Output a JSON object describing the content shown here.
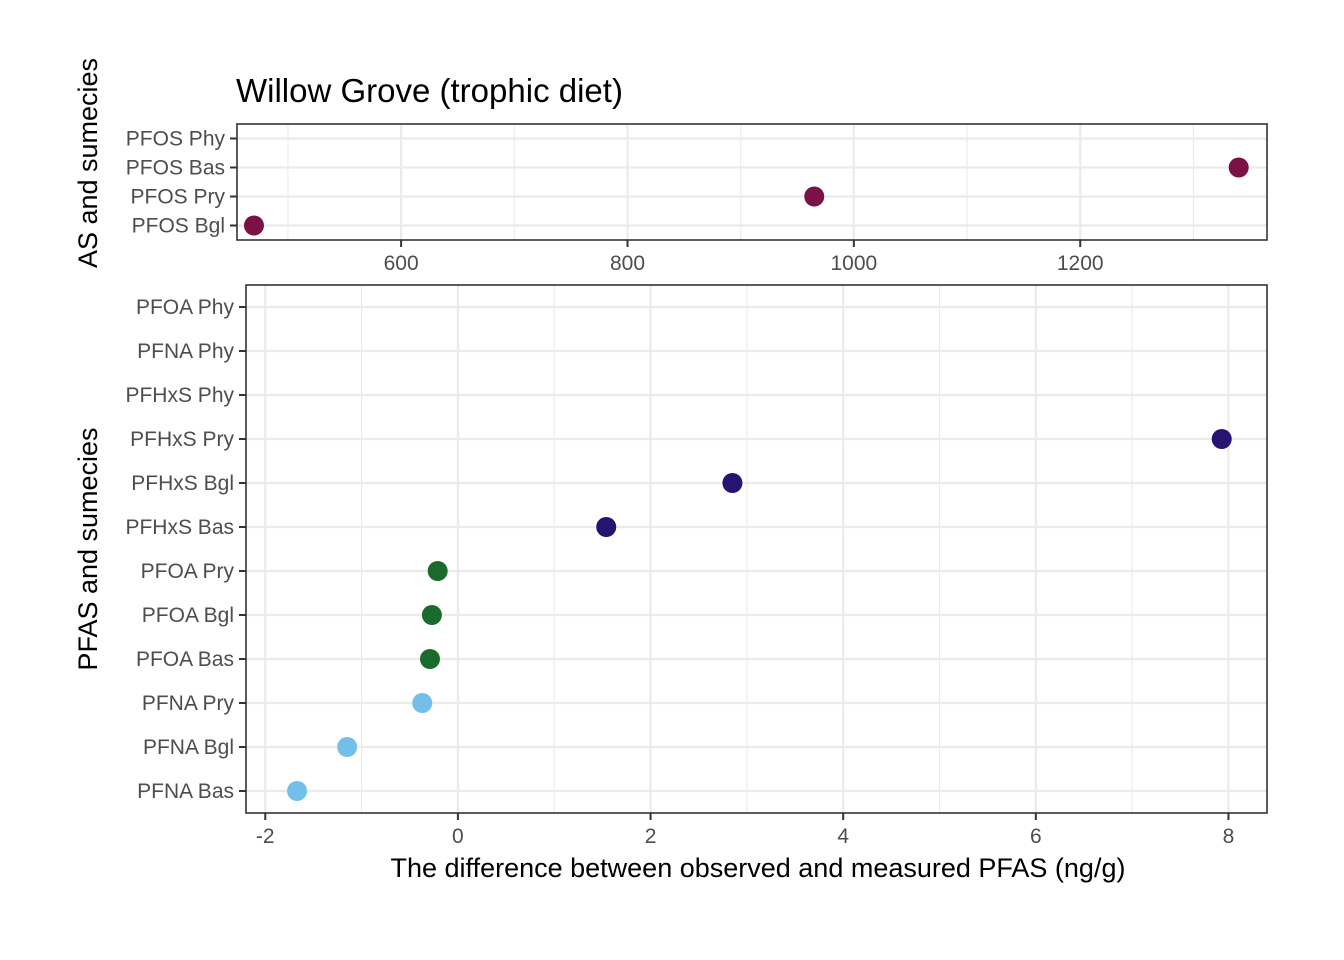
{
  "chart_data": [
    {
      "type": "scatter",
      "title": "Willow Grove (trophic diet)",
      "ylabel": "AS and sumecies",
      "xlabel": "",
      "categories": [
        "PFOS Bgl",
        "PFOS Pry",
        "PFOS Bas",
        "PFOS Phy"
      ],
      "xlim": [
        455,
        1365
      ],
      "xticks": [
        600,
        800,
        1000,
        1200
      ],
      "grid": true,
      "series": [
        {
          "color": "#7b1246",
          "points": [
            {
              "category": "PFOS Bgl",
              "x": 470
            },
            {
              "category": "PFOS Pry",
              "x": 965
            },
            {
              "category": "PFOS Bas",
              "x": 1340
            }
          ]
        }
      ]
    },
    {
      "type": "scatter",
      "title": "",
      "ylabel": "PFAS and sumecies",
      "xlabel": "The difference between observed and measured PFAS (ng/g)",
      "categories": [
        "PFNA Bas",
        "PFNA Bgl",
        "PFNA Pry",
        "PFOA Bas",
        "PFOA Bgl",
        "PFOA Pry",
        "PFHxS Bas",
        "PFHxS Bgl",
        "PFHxS Pry",
        "PFHxS Phy",
        "PFNA Phy",
        "PFOA Phy"
      ],
      "xlim": [
        -2.2,
        8.4
      ],
      "xticks": [
        -2,
        0,
        2,
        4,
        6,
        8
      ],
      "grid": true,
      "series": [
        {
          "color": "#74bfe9",
          "points": [
            {
              "category": "PFNA Bas",
              "x": -1.67
            },
            {
              "category": "PFNA Bgl",
              "x": -1.15
            },
            {
              "category": "PFNA Pry",
              "x": -0.37
            }
          ]
        },
        {
          "color": "#1a6b2b",
          "points": [
            {
              "category": "PFOA Bas",
              "x": -0.29
            },
            {
              "category": "PFOA Bgl",
              "x": -0.27
            },
            {
              "category": "PFOA Pry",
              "x": -0.21
            }
          ]
        },
        {
          "color": "#271371",
          "points": [
            {
              "category": "PFHxS Bas",
              "x": 1.54
            },
            {
              "category": "PFHxS Bgl",
              "x": 2.85
            },
            {
              "category": "PFHxS Pry",
              "x": 7.93
            }
          ]
        }
      ]
    }
  ]
}
